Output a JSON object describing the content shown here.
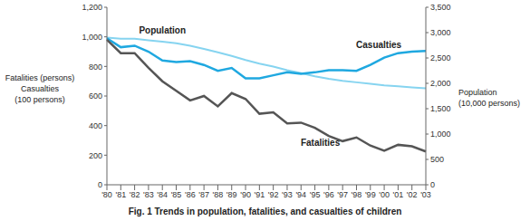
{
  "chart_data": {
    "type": "line",
    "title": "Fig. 1 Trends in population, fatalities, and casualties of children",
    "ylabel": [
      "Fatalities (persons)",
      "Casualties",
      "(100 persons)"
    ],
    "y2label": [
      "Population",
      "(10,000 persons)"
    ],
    "categories": [
      "'80",
      "'81",
      "'82",
      "'83",
      "'84",
      "'85",
      "'86",
      "'87",
      "'88",
      "'89",
      "'90",
      "'91",
      "'92",
      "'93",
      "'94",
      "'95",
      "'96",
      "'97",
      "'98",
      "'99",
      "'00",
      "'01",
      "'02",
      "'03"
    ],
    "series": [
      {
        "name": "Population",
        "color": "#86d4f0",
        "axis": "y2",
        "values": [
          2900,
          2880,
          2880,
          2850,
          2820,
          2790,
          2740,
          2680,
          2610,
          2540,
          2460,
          2390,
          2330,
          2260,
          2200,
          2140,
          2090,
          2050,
          2020,
          1990,
          1960,
          1940,
          1920,
          1900
        ]
      },
      {
        "name": "Casualties",
        "color": "#1fa8e0",
        "values": [
          990,
          930,
          940,
          900,
          840,
          830,
          835,
          810,
          770,
          790,
          720,
          720,
          740,
          760,
          750,
          760,
          775,
          775,
          770,
          810,
          860,
          890,
          900,
          905
        ]
      },
      {
        "name": "Fatalities",
        "color": "#555555",
        "values": [
          980,
          890,
          890,
          790,
          700,
          635,
          570,
          600,
          530,
          620,
          580,
          480,
          490,
          415,
          420,
          385,
          330,
          295,
          320,
          265,
          230,
          270,
          260,
          225
        ]
      }
    ],
    "ylim": [
      0,
      1200
    ],
    "yticks": [
      0,
      200,
      400,
      600,
      800,
      {
        "value": 1000,
        "label": "1,000"
      },
      {
        "value": 1200,
        "label": "1,200"
      }
    ],
    "y2lim": [
      0,
      3500
    ],
    "y2ticks": [
      0,
      500,
      {
        "value": 1000,
        "label": "1,000"
      },
      {
        "value": 1500,
        "label": "1,500"
      },
      {
        "value": 2000,
        "label": "2,000"
      },
      {
        "value": 2500,
        "label": "2,500"
      },
      {
        "value": 3000,
        "label": "3,000"
      },
      {
        "value": 3500,
        "label": "3,500"
      }
    ],
    "grid": false
  }
}
